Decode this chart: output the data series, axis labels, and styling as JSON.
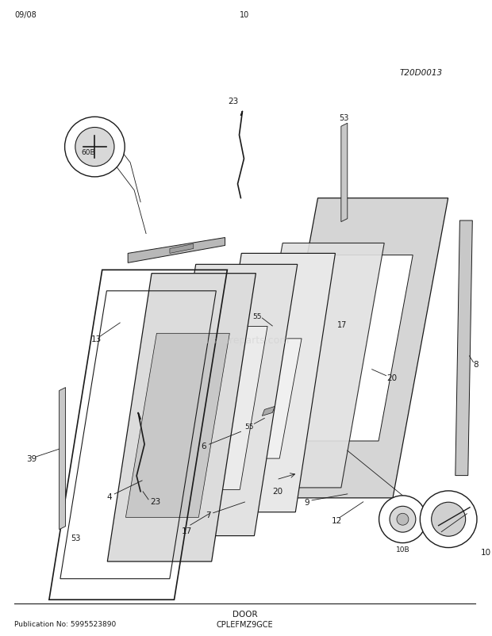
{
  "pub_no": "Publication No: 5995523890",
  "model": "CPLEFMZ9GCE",
  "section": "DOOR",
  "diagram_code": "T20D0013",
  "date_code": "09/08",
  "page": "10",
  "bg_color": "#ffffff",
  "lc": "#1a1a1a",
  "watermark": "allspareparts.com",
  "watermark_color": "#cccccc"
}
